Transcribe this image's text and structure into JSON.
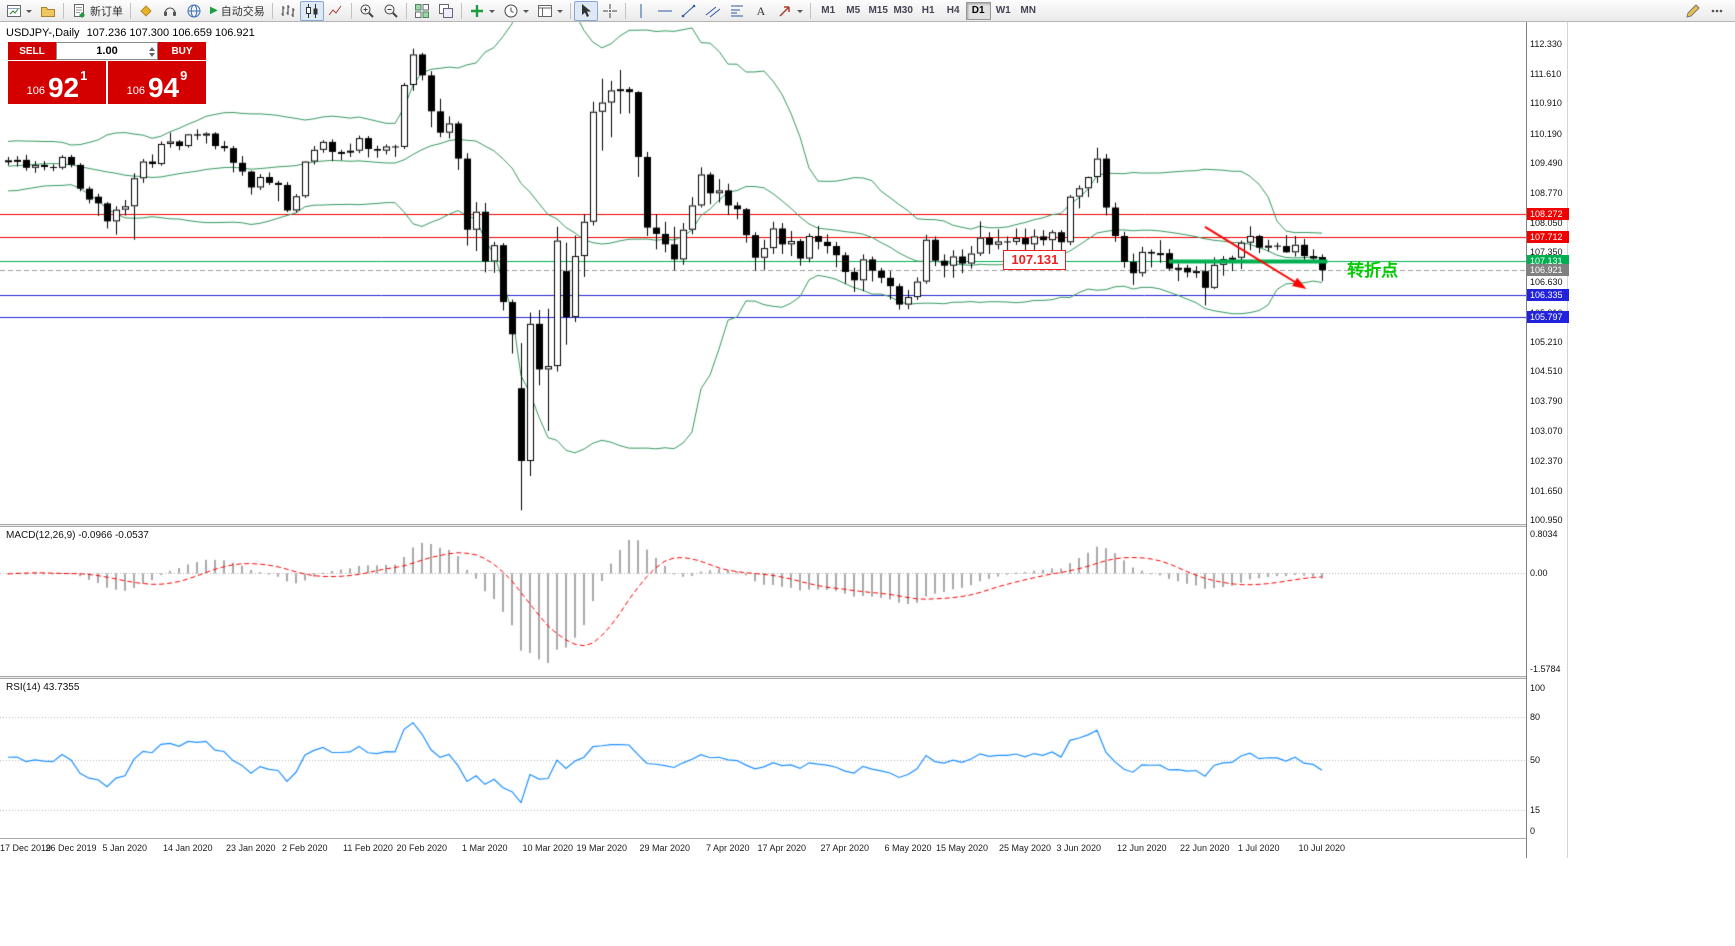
{
  "toolbar": {
    "new_order": "新订单",
    "autotrading": "自动交易",
    "timeframes": [
      "M1",
      "M5",
      "M15",
      "M30",
      "H1",
      "H4",
      "D1",
      "W1",
      "MN"
    ],
    "active_timeframe": "D1"
  },
  "chart": {
    "symbol": "USDJPY-,Daily",
    "ohlc": "107.236 107.300 106.659 106.921",
    "trade_panel": {
      "sell_label": "SELL",
      "buy_label": "BUY",
      "volume": "1.00",
      "sell_price_small": "106",
      "sell_price_big": "92",
      "sell_price_pip": "1",
      "buy_price_small": "106",
      "buy_price_big": "94",
      "buy_price_pip": "9",
      "button_color": "#d40000"
    },
    "annotations": {
      "price_label": {
        "text": "107.131",
        "bar": 110.6,
        "price": 107.4,
        "color": "#f02020"
      },
      "turning_point": {
        "text": "转折点",
        "bar": 148.8,
        "price": 107.26,
        "color": "#00cc00"
      }
    }
  },
  "macd_panel": {
    "label": "MACD(12,26,9) -0.0966 -0.0537",
    "axis_top": "0.8034",
    "axis_zero": "0.00",
    "axis_bottom": "-1.5784"
  },
  "rsi_panel": {
    "label": "RSI(14) 43.7355",
    "axis_labels": [
      {
        "text": "100",
        "value": 100
      },
      {
        "text": "80",
        "value": 80
      },
      {
        "text": "50",
        "value": 50
      },
      {
        "text": "15",
        "value": 15
      },
      {
        "text": "0",
        "value": 0
      }
    ]
  },
  "chart_data": {
    "type": "candlestick",
    "symbol": "USDJPY",
    "timeframe": "Daily",
    "y_axis": {
      "range": [
        100.95,
        112.33
      ],
      "ticks": [
        "112.330",
        "111.610",
        "110.910",
        "110.190",
        "109.490",
        "108.770",
        "108.050",
        "107.350",
        "106.630",
        "105.910",
        "105.210",
        "104.510",
        "103.790",
        "103.070",
        "102.370",
        "101.650",
        "100.950"
      ],
      "badges": [
        {
          "text": "108.272",
          "price": 108.272,
          "bg": "#f00000"
        },
        {
          "text": "107.712",
          "price": 107.712,
          "bg": "#f00000"
        },
        {
          "text": "107.131",
          "price": 107.131,
          "bg": "#00b050"
        },
        {
          "text": "106.921",
          "price": 106.921,
          "bg": "#808080"
        },
        {
          "text": "106.335",
          "price": 106.335,
          "bg": "#2222dd"
        },
        {
          "text": "105.797",
          "price": 105.797,
          "bg": "#2222dd"
        }
      ]
    },
    "x_labels": [
      "17 Dec 2019",
      "26 Dec 2019",
      "5 Jan 2020",
      "14 Jan 2020",
      "23 Jan 2020",
      "2 Feb 2020",
      "11 Feb 2020",
      "20 Feb 2020",
      "1 Mar 2020",
      "10 Mar 2020",
      "19 Mar 2020",
      "29 Mar 2020",
      "7 Apr 2020",
      "17 Apr 2020",
      "27 Apr 2020",
      "6 May 2020",
      "15 May 2020",
      "25 May 2020",
      "3 Jun 2020",
      "12 Jun 2020",
      "22 Jun 2020",
      "1 Jul 2020",
      "10 Jul 2020"
    ],
    "hlines": [
      {
        "price": 108.272,
        "color": "#f00000",
        "width": 1,
        "style": "solid"
      },
      {
        "price": 107.712,
        "color": "#f00000",
        "width": 1,
        "style": "solid"
      },
      {
        "price": 107.131,
        "color": "#00b050",
        "width": 1,
        "style": "solid"
      },
      {
        "price": 106.921,
        "color": "#9c9c9c",
        "width": 1,
        "style": "dash"
      },
      {
        "price": 106.335,
        "color": "#2222dd",
        "width": 1,
        "style": "solid"
      },
      {
        "price": 105.797,
        "color": "#2222dd",
        "width": 1,
        "style": "solid"
      }
    ],
    "segments": [
      {
        "bar1": 129,
        "price1": 107.131,
        "bar2": 146.6,
        "price2": 107.131,
        "color": "#00b050",
        "width": 4
      }
    ],
    "trendlines": [
      {
        "bar1": 133,
        "price1": 107.96,
        "bar2": 143.9,
        "price2": 106.52,
        "color": "#ff0000",
        "width": 2,
        "arrow": true
      }
    ],
    "indicators": {
      "bollinger": {
        "period": 20,
        "deviations": 2,
        "color": "#35985e"
      },
      "macd": {
        "fast": 12,
        "slow": 26,
        "signal": 9,
        "histogram_color": "#a9a9a9",
        "signal_color": "#ff0000"
      },
      "rsi": {
        "period": 14,
        "color": "#1e90ff",
        "levels": [
          80,
          50,
          15
        ]
      }
    },
    "candles": [
      [
        109.53,
        109.63,
        109.43,
        109.55
      ],
      [
        109.55,
        109.65,
        109.4,
        109.56
      ],
      [
        109.56,
        109.68,
        109.3,
        109.37
      ],
      [
        109.37,
        109.53,
        109.25,
        109.44
      ],
      [
        109.44,
        109.53,
        109.31,
        109.39
      ],
      [
        109.39,
        109.45,
        109.29,
        109.37
      ],
      [
        109.37,
        109.67,
        109.33,
        109.63
      ],
      [
        109.63,
        109.68,
        109.38,
        109.44
      ],
      [
        109.44,
        109.48,
        108.81,
        108.87
      ],
      [
        108.87,
        108.92,
        108.52,
        108.61
      ],
      [
        108.68,
        108.75,
        108.22,
        108.52
      ],
      [
        108.52,
        108.55,
        107.92,
        108.09
      ],
      [
        108.09,
        108.45,
        107.77,
        108.37
      ],
      [
        108.37,
        108.6,
        108.23,
        108.45
      ],
      [
        108.45,
        109.24,
        107.65,
        109.12
      ],
      [
        109.12,
        109.58,
        109.01,
        109.52
      ],
      [
        109.52,
        109.69,
        109.37,
        109.46
      ],
      [
        109.46,
        110.0,
        109.42,
        109.94
      ],
      [
        109.94,
        110.21,
        109.85,
        110.0
      ],
      [
        110.0,
        110.03,
        109.79,
        109.89
      ],
      [
        109.89,
        110.18,
        109.85,
        110.17
      ],
      [
        110.17,
        110.29,
        110.04,
        110.14
      ],
      [
        110.14,
        110.22,
        109.95,
        110.19
      ],
      [
        110.19,
        110.22,
        109.81,
        109.89
      ],
      [
        109.89,
        110.01,
        109.76,
        109.84
      ],
      [
        109.84,
        109.89,
        109.26,
        109.49
      ],
      [
        109.49,
        109.65,
        109.18,
        109.28
      ],
      [
        109.28,
        109.3,
        108.73,
        108.9
      ],
      [
        108.9,
        109.22,
        108.84,
        109.15
      ],
      [
        109.15,
        109.26,
        108.96,
        109.01
      ],
      [
        109.01,
        109.06,
        108.57,
        108.96
      ],
      [
        108.96,
        109.03,
        108.31,
        108.35
      ],
      [
        108.35,
        108.74,
        108.3,
        108.69
      ],
      [
        108.69,
        109.53,
        108.65,
        109.52
      ],
      [
        109.52,
        109.89,
        109.45,
        109.8
      ],
      [
        109.8,
        110.03,
        109.73,
        109.99
      ],
      [
        109.99,
        110.05,
        109.53,
        109.75
      ],
      [
        109.75,
        109.8,
        109.55,
        109.75
      ],
      [
        109.75,
        109.95,
        109.63,
        109.78
      ],
      [
        109.78,
        110.14,
        109.72,
        110.08
      ],
      [
        110.08,
        110.13,
        109.62,
        109.82
      ],
      [
        109.82,
        109.9,
        109.61,
        109.78
      ],
      [
        109.78,
        109.93,
        109.69,
        109.88
      ],
      [
        109.88,
        109.92,
        109.63,
        109.87
      ],
      [
        109.87,
        111.4,
        109.82,
        111.35
      ],
      [
        111.35,
        112.22,
        111.21,
        112.08
      ],
      [
        112.08,
        112.12,
        111.46,
        111.58
      ],
      [
        111.58,
        111.68,
        110.34,
        110.72
      ],
      [
        110.72,
        111.02,
        110.1,
        110.21
      ],
      [
        110.21,
        110.6,
        110.07,
        110.43
      ],
      [
        110.43,
        110.48,
        109.32,
        109.59
      ],
      [
        109.59,
        109.72,
        107.51,
        107.89
      ],
      [
        107.89,
        108.55,
        107.38,
        108.32
      ],
      [
        108.32,
        108.53,
        106.87,
        107.13
      ],
      [
        107.13,
        107.6,
        106.86,
        107.52
      ],
      [
        107.52,
        107.57,
        105.96,
        106.16
      ],
      [
        106.16,
        106.22,
        104.93,
        105.39
      ],
      [
        104.1,
        105.18,
        101.18,
        102.36
      ],
      [
        102.36,
        105.91,
        102.0,
        105.64
      ],
      [
        105.64,
        105.97,
        104.17,
        104.55
      ],
      [
        104.55,
        106.0,
        103.08,
        104.63
      ],
      [
        104.63,
        107.96,
        104.5,
        107.63
      ],
      [
        106.9,
        107.58,
        105.14,
        105.8
      ],
      [
        105.8,
        107.75,
        105.68,
        107.26
      ],
      [
        107.26,
        108.26,
        106.76,
        108.08
      ],
      [
        108.08,
        110.95,
        107.99,
        110.71
      ],
      [
        110.71,
        111.5,
        109.78,
        110.93
      ],
      [
        110.93,
        111.45,
        110.1,
        111.22
      ],
      [
        111.22,
        111.71,
        110.66,
        111.25
      ],
      [
        111.25,
        111.3,
        110.67,
        111.18
      ],
      [
        111.18,
        111.2,
        109.15,
        109.63
      ],
      [
        109.63,
        109.75,
        107.74,
        107.94
      ],
      [
        107.94,
        108.26,
        107.42,
        107.79
      ],
      [
        107.79,
        108.08,
        107.35,
        107.54
      ],
      [
        107.54,
        107.96,
        106.92,
        107.18
      ],
      [
        107.18,
        108.05,
        107.05,
        107.89
      ],
      [
        107.89,
        108.67,
        107.78,
        108.47
      ],
      [
        108.47,
        109.38,
        108.42,
        109.21
      ],
      [
        109.21,
        109.26,
        108.5,
        108.76
      ],
      [
        108.76,
        109.1,
        108.54,
        108.83
      ],
      [
        108.83,
        108.99,
        108.24,
        108.47
      ],
      [
        108.47,
        108.55,
        108.14,
        108.38
      ],
      [
        108.38,
        108.41,
        107.58,
        107.76
      ],
      [
        107.76,
        107.83,
        106.91,
        107.22
      ],
      [
        107.22,
        107.65,
        106.93,
        107.45
      ],
      [
        107.45,
        108.08,
        107.31,
        107.92
      ],
      [
        107.92,
        108.05,
        107.31,
        107.54
      ],
      [
        107.54,
        107.86,
        107.26,
        107.62
      ],
      [
        107.62,
        107.67,
        107.03,
        107.2
      ],
      [
        107.2,
        107.8,
        107.11,
        107.74
      ],
      [
        107.74,
        107.98,
        107.42,
        107.6
      ],
      [
        107.6,
        107.78,
        107.32,
        107.5
      ],
      [
        107.5,
        107.6,
        106.99,
        107.28
      ],
      [
        107.28,
        107.35,
        106.6,
        106.88
      ],
      [
        106.88,
        106.98,
        106.4,
        106.68
      ],
      [
        106.68,
        107.3,
        106.42,
        107.18
      ],
      [
        107.18,
        107.25,
        106.65,
        106.91
      ],
      [
        106.91,
        106.98,
        106.61,
        106.74
      ],
      [
        106.74,
        106.9,
        106.22,
        106.54
      ],
      [
        106.54,
        106.6,
        105.98,
        106.1
      ],
      [
        106.1,
        106.45,
        105.99,
        106.28
      ],
      [
        106.28,
        106.75,
        106.21,
        106.65
      ],
      [
        106.65,
        107.77,
        106.6,
        107.65
      ],
      [
        107.65,
        107.73,
        107.02,
        107.15
      ],
      [
        107.15,
        107.3,
        106.75,
        107.03
      ],
      [
        107.03,
        107.4,
        106.74,
        107.25
      ],
      [
        107.25,
        107.42,
        106.85,
        107.08
      ],
      [
        107.08,
        107.5,
        106.96,
        107.32
      ],
      [
        107.32,
        108.09,
        107.26,
        107.7
      ],
      [
        107.7,
        107.83,
        107.31,
        107.53
      ],
      [
        107.53,
        107.9,
        107.42,
        107.61
      ],
      [
        107.61,
        107.73,
        107.29,
        107.6
      ],
      [
        107.6,
        107.92,
        107.53,
        107.69
      ],
      [
        107.69,
        107.92,
        107.38,
        107.54
      ],
      [
        107.54,
        107.9,
        107.4,
        107.73
      ],
      [
        107.73,
        107.88,
        107.51,
        107.64
      ],
      [
        107.64,
        107.88,
        107.06,
        107.83
      ],
      [
        107.83,
        107.88,
        107.38,
        107.59
      ],
      [
        107.59,
        108.72,
        107.52,
        108.68
      ],
      [
        108.68,
        108.95,
        108.4,
        108.88
      ],
      [
        108.88,
        109.16,
        108.67,
        109.15
      ],
      [
        109.15,
        109.85,
        109.01,
        109.59
      ],
      [
        109.59,
        109.7,
        108.23,
        108.42
      ],
      [
        108.42,
        108.54,
        107.6,
        107.74
      ],
      [
        107.74,
        107.84,
        106.98,
        107.12
      ],
      [
        107.12,
        107.32,
        106.57,
        106.85
      ],
      [
        106.85,
        107.48,
        106.77,
        107.36
      ],
      [
        107.36,
        107.42,
        106.99,
        107.32
      ],
      [
        107.32,
        107.64,
        107.1,
        107.33
      ],
      [
        107.33,
        107.43,
        106.92,
        106.96
      ],
      [
        106.96,
        107.08,
        106.66,
        106.98
      ],
      [
        106.98,
        107.05,
        106.75,
        106.87
      ],
      [
        106.87,
        107.02,
        106.74,
        106.9
      ],
      [
        106.9,
        107.13,
        106.08,
        106.5
      ],
      [
        106.5,
        107.23,
        106.47,
        107.05
      ],
      [
        107.05,
        107.26,
        106.79,
        107.19
      ],
      [
        107.19,
        107.27,
        106.9,
        107.22
      ],
      [
        107.22,
        107.63,
        106.95,
        107.58
      ],
      [
        107.58,
        107.97,
        107.4,
        107.74
      ],
      [
        107.74,
        107.77,
        107.33,
        107.46
      ],
      [
        107.46,
        107.65,
        107.37,
        107.51
      ],
      [
        107.51,
        107.58,
        107.4,
        107.5
      ],
      [
        107.5,
        107.76,
        107.34,
        107.35
      ],
      [
        107.35,
        107.74,
        107.25,
        107.53
      ],
      [
        107.53,
        107.67,
        107.14,
        107.26
      ],
      [
        107.26,
        107.42,
        107.12,
        107.2
      ],
      [
        107.236,
        107.3,
        106.659,
        106.921
      ]
    ]
  }
}
